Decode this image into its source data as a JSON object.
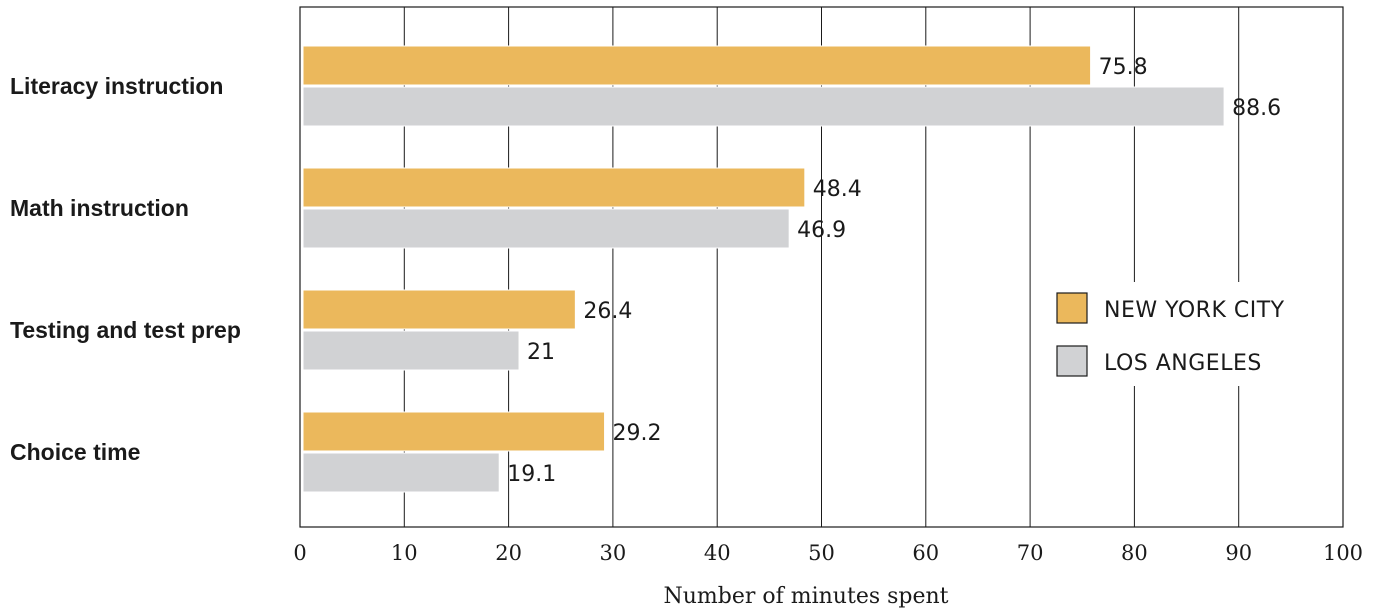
{
  "chart_data": {
    "type": "bar",
    "orientation": "horizontal",
    "categories": [
      "Literacy instruction",
      "Math instruction",
      "Testing and test prep",
      "Choice time"
    ],
    "series": [
      {
        "name": "NEW YORK CITY",
        "color": "#ebb85c",
        "values": [
          75.8,
          48.4,
          26.4,
          29.2
        ],
        "labels": [
          "75.8",
          "48.4",
          "26.4",
          "29.2"
        ]
      },
      {
        "name": "LOS ANGELES",
        "color": "#d1d2d4",
        "values": [
          88.6,
          46.9,
          21,
          19.1
        ],
        "labels": [
          "88.6",
          "46.9",
          "21",
          "19.1"
        ]
      }
    ],
    "xlabel": "Number of minutes spent",
    "ylabel": "",
    "xlim": [
      0,
      100
    ],
    "xticks": [
      "0",
      "10",
      "20",
      "30",
      "40",
      "50",
      "60",
      "70",
      "80",
      "90",
      "100"
    ],
    "grid": true,
    "legend_position": "right"
  }
}
